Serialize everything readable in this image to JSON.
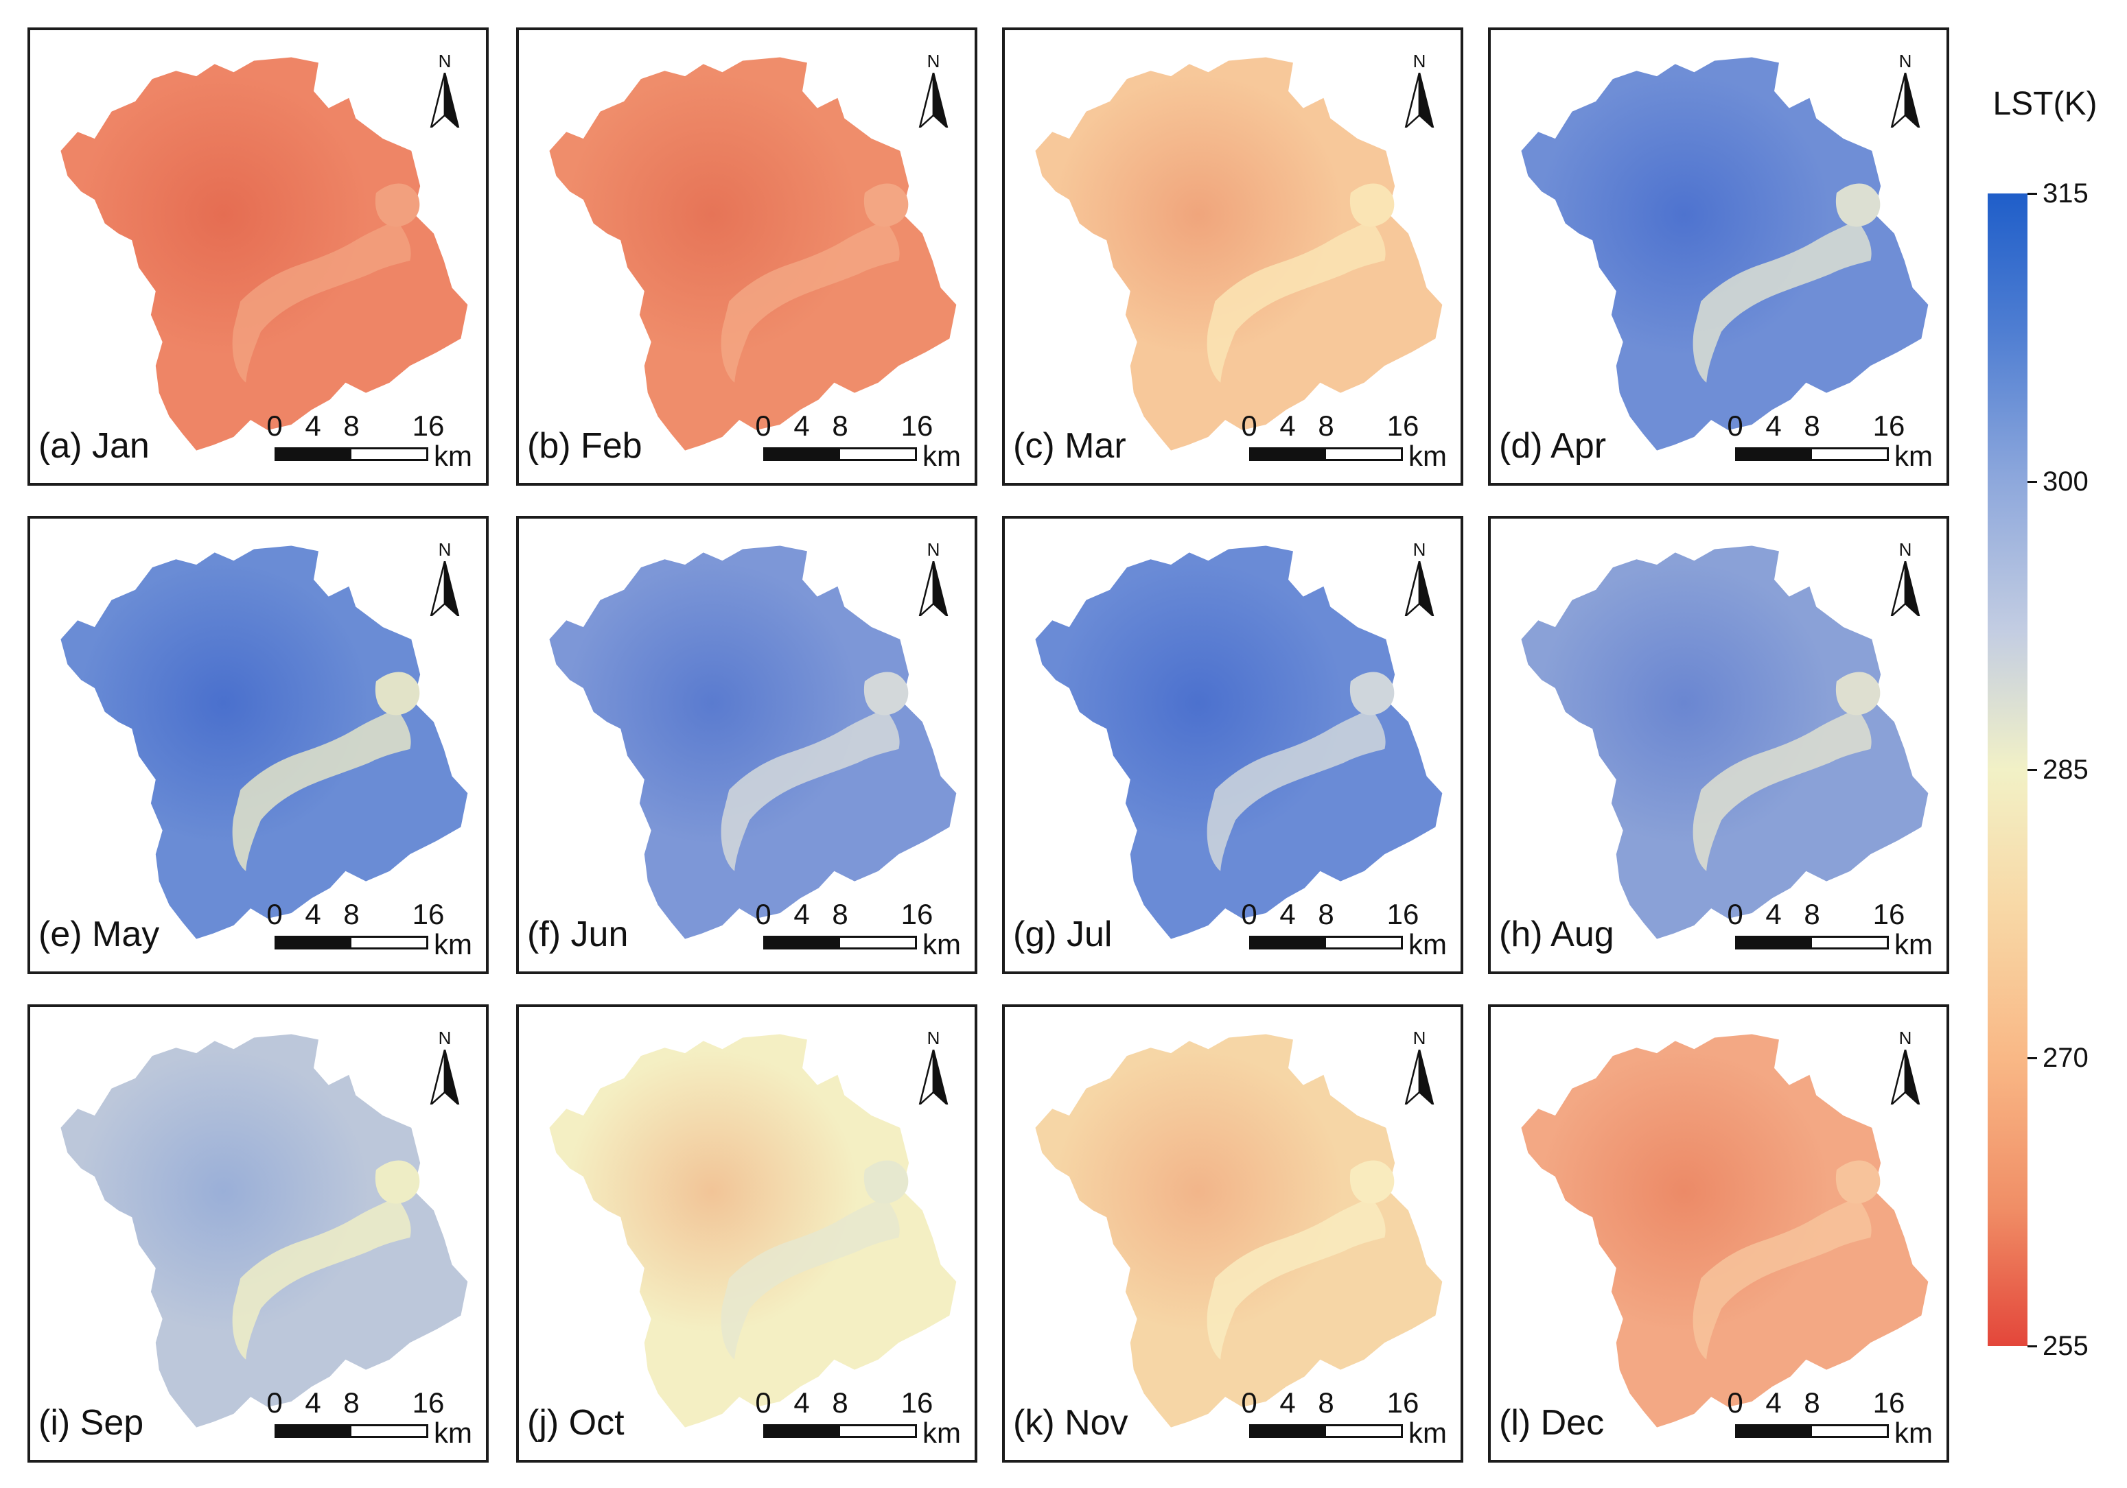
{
  "panels": [
    {
      "label": "(a) Jan",
      "colors": [
        "#ee8566",
        "#e56d52",
        "#f2a07e"
      ]
    },
    {
      "label": "(b) Feb",
      "colors": [
        "#ef8d6b",
        "#e67457",
        "#f3a683"
      ]
    },
    {
      "label": "(c) Mar",
      "colors": [
        "#f7c89a",
        "#f0a57c",
        "#fae4b4"
      ]
    },
    {
      "label": "(d) Apr",
      "colors": [
        "#6f8ed6",
        "#4e73cf",
        "#dcdfd2"
      ]
    },
    {
      "label": "(e) May",
      "colors": [
        "#6a8cd5",
        "#4a70cd",
        "#e2e3c8"
      ]
    },
    {
      "label": "(f) Jun",
      "colors": [
        "#7d97d7",
        "#5a7bcf",
        "#d3d8da"
      ]
    },
    {
      "label": "(g) Jul",
      "colors": [
        "#6a8bd6",
        "#4c71ce",
        "#cfd6dc"
      ]
    },
    {
      "label": "(h) Aug",
      "colors": [
        "#8aa1d7",
        "#6a86d1",
        "#dedfd0"
      ]
    },
    {
      "label": "(i) Sep",
      "colors": [
        "#bcc7da",
        "#9aafd8",
        "#eeedc5"
      ]
    },
    {
      "label": "(j) Oct",
      "colors": [
        "#f4efc3",
        "#f2c497",
        "#e6e8cf"
      ]
    },
    {
      "label": "(k) Nov",
      "colors": [
        "#f6d6a6",
        "#f2b58a",
        "#f9ebbe"
      ]
    },
    {
      "label": "(l) Dec",
      "colors": [
        "#f3a884",
        "#ec8a67",
        "#f7c39b"
      ]
    }
  ],
  "north_letter": "N",
  "scalebar": {
    "ticks": [
      "0",
      "4",
      "8",
      "16"
    ],
    "unit": "km"
  },
  "legend": {
    "title": "LST(K)",
    "min": 255,
    "max": 315,
    "ticks": [
      "315",
      "300",
      "285",
      "270",
      "255"
    ],
    "colors": [
      "#1f5ec9",
      "#8ea8dc",
      "#f2f1c6",
      "#f9b886",
      "#e3463a"
    ]
  }
}
